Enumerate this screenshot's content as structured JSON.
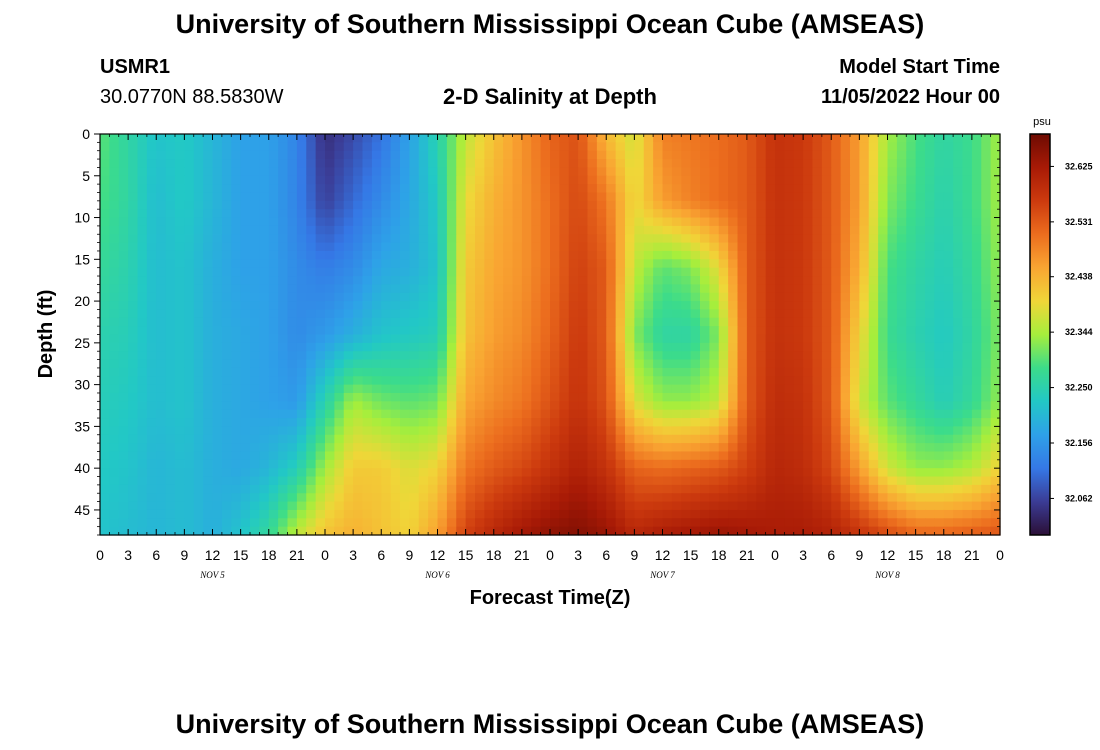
{
  "title": "University of Southern Mississippi Ocean Cube (AMSEAS)",
  "title_repeat": "University of Southern Mississippi Ocean Cube (AMSEAS)",
  "station": {
    "id": "USMR1",
    "coords": "30.0770N  88.5830W"
  },
  "model": {
    "label": "Model Start Time",
    "time": "11/05/2022 Hour 00"
  },
  "chart_data": {
    "type": "heatmap",
    "title": "2-D Salinity at Depth",
    "xlabel": "Forecast Time(Z)",
    "ylabel": "Depth (ft)",
    "units": "psu",
    "x_hours_range": [
      0,
      96
    ],
    "ylim": [
      0,
      48
    ],
    "x_tick_step_hours": 3,
    "x_tick_labels": [
      "0",
      "3",
      "6",
      "9",
      "12",
      "15",
      "18",
      "21",
      "0",
      "3",
      "6",
      "9",
      "12",
      "15",
      "18",
      "21",
      "0",
      "3",
      "6",
      "9",
      "12",
      "15",
      "18",
      "21",
      "0",
      "3",
      "6",
      "9",
      "12",
      "15",
      "18",
      "21",
      "0"
    ],
    "y_tick_values": [
      0,
      5,
      10,
      15,
      20,
      25,
      30,
      35,
      40,
      45
    ],
    "y_tick_labels": [
      "0",
      "5",
      "10",
      "15",
      "20",
      "25",
      "30",
      "35",
      "40",
      "45"
    ],
    "day_labels": [
      {
        "text": "NOV 5",
        "hour": 12
      },
      {
        "text": "NOV 6",
        "hour": 36
      },
      {
        "text": "NOV 7",
        "hour": 60
      },
      {
        "text": "NOV 8",
        "hour": 84
      }
    ],
    "colorbar": {
      "min": 32.0,
      "max": 32.68,
      "tick_values": [
        32.625,
        32.531,
        32.438,
        32.344,
        32.25,
        32.156,
        32.062
      ],
      "tick_labels": [
        "32.625",
        "32.531",
        "32.438",
        "32.344",
        "32.250",
        "32.156",
        "32.062"
      ],
      "stops": [
        "#2b0f36",
        "#3b3c95",
        "#3578e6",
        "#2ea1e8",
        "#22c8c6",
        "#3cdc8a",
        "#a6ee3c",
        "#f0d638",
        "#f9a532",
        "#ec6d1e",
        "#cc3a0e",
        "#a81a06",
        "#6e0b02"
      ]
    },
    "field_hours": [
      0,
      3,
      6,
      9,
      12,
      15,
      18,
      21,
      24,
      27,
      30,
      33,
      36,
      39,
      42,
      45,
      48,
      51,
      54,
      57,
      60,
      63,
      66,
      69,
      72,
      75,
      78,
      81,
      84,
      87,
      90,
      93,
      96
    ],
    "field_depths": [
      0,
      8,
      16,
      24,
      32,
      40,
      48
    ],
    "field_values": [
      [
        32.3,
        32.26,
        32.22,
        32.23,
        32.2,
        32.17,
        32.17,
        32.13,
        32.04,
        32.07,
        32.11,
        32.17,
        32.25,
        32.36,
        32.42,
        32.47,
        32.52,
        32.54,
        32.43,
        32.37,
        32.49,
        32.5,
        32.51,
        32.53,
        32.58,
        32.57,
        32.53,
        32.46,
        32.34,
        32.29,
        32.26,
        32.28,
        32.34
      ],
      [
        32.29,
        32.26,
        32.21,
        32.23,
        32.2,
        32.17,
        32.17,
        32.13,
        32.06,
        32.1,
        32.14,
        32.18,
        32.23,
        32.39,
        32.44,
        32.47,
        32.51,
        32.55,
        32.5,
        32.39,
        32.46,
        32.49,
        32.51,
        32.53,
        32.58,
        32.57,
        32.53,
        32.46,
        32.32,
        32.28,
        32.25,
        32.28,
        32.34
      ],
      [
        32.27,
        32.25,
        32.21,
        32.22,
        32.19,
        32.17,
        32.17,
        32.14,
        32.12,
        32.14,
        32.18,
        32.19,
        32.22,
        32.41,
        32.45,
        32.47,
        32.51,
        32.56,
        32.53,
        32.36,
        32.3,
        32.32,
        32.39,
        32.53,
        32.58,
        32.57,
        32.53,
        32.44,
        32.29,
        32.26,
        32.24,
        32.27,
        32.33
      ],
      [
        32.25,
        32.24,
        32.21,
        32.22,
        32.19,
        32.18,
        32.17,
        32.14,
        32.16,
        32.19,
        32.22,
        32.23,
        32.24,
        32.42,
        32.46,
        32.48,
        32.52,
        32.57,
        32.53,
        32.32,
        32.26,
        32.26,
        32.32,
        32.53,
        32.58,
        32.57,
        32.53,
        32.4,
        32.28,
        32.25,
        32.23,
        32.26,
        32.32
      ],
      [
        32.24,
        32.23,
        32.21,
        32.22,
        32.19,
        32.18,
        32.17,
        32.16,
        32.25,
        32.34,
        32.31,
        32.3,
        32.31,
        32.45,
        32.48,
        32.5,
        32.54,
        32.58,
        32.54,
        32.38,
        32.33,
        32.33,
        32.36,
        32.53,
        32.59,
        32.58,
        32.53,
        32.37,
        32.3,
        32.27,
        32.24,
        32.27,
        32.33
      ],
      [
        32.23,
        32.22,
        32.2,
        32.21,
        32.19,
        32.18,
        32.2,
        32.24,
        32.34,
        32.41,
        32.41,
        32.38,
        32.4,
        32.5,
        32.53,
        32.55,
        32.58,
        32.61,
        32.58,
        32.52,
        32.51,
        32.52,
        32.53,
        32.56,
        32.6,
        32.59,
        32.55,
        32.46,
        32.37,
        32.33,
        32.33,
        32.35,
        32.4
      ],
      [
        32.22,
        32.21,
        32.2,
        32.21,
        32.19,
        32.22,
        32.27,
        32.36,
        32.42,
        32.44,
        32.42,
        32.4,
        32.46,
        32.56,
        32.6,
        32.63,
        32.65,
        32.66,
        32.64,
        32.6,
        32.62,
        32.63,
        32.64,
        32.63,
        32.62,
        32.62,
        32.61,
        32.58,
        32.55,
        32.52,
        32.52,
        32.53,
        32.54
      ]
    ]
  }
}
